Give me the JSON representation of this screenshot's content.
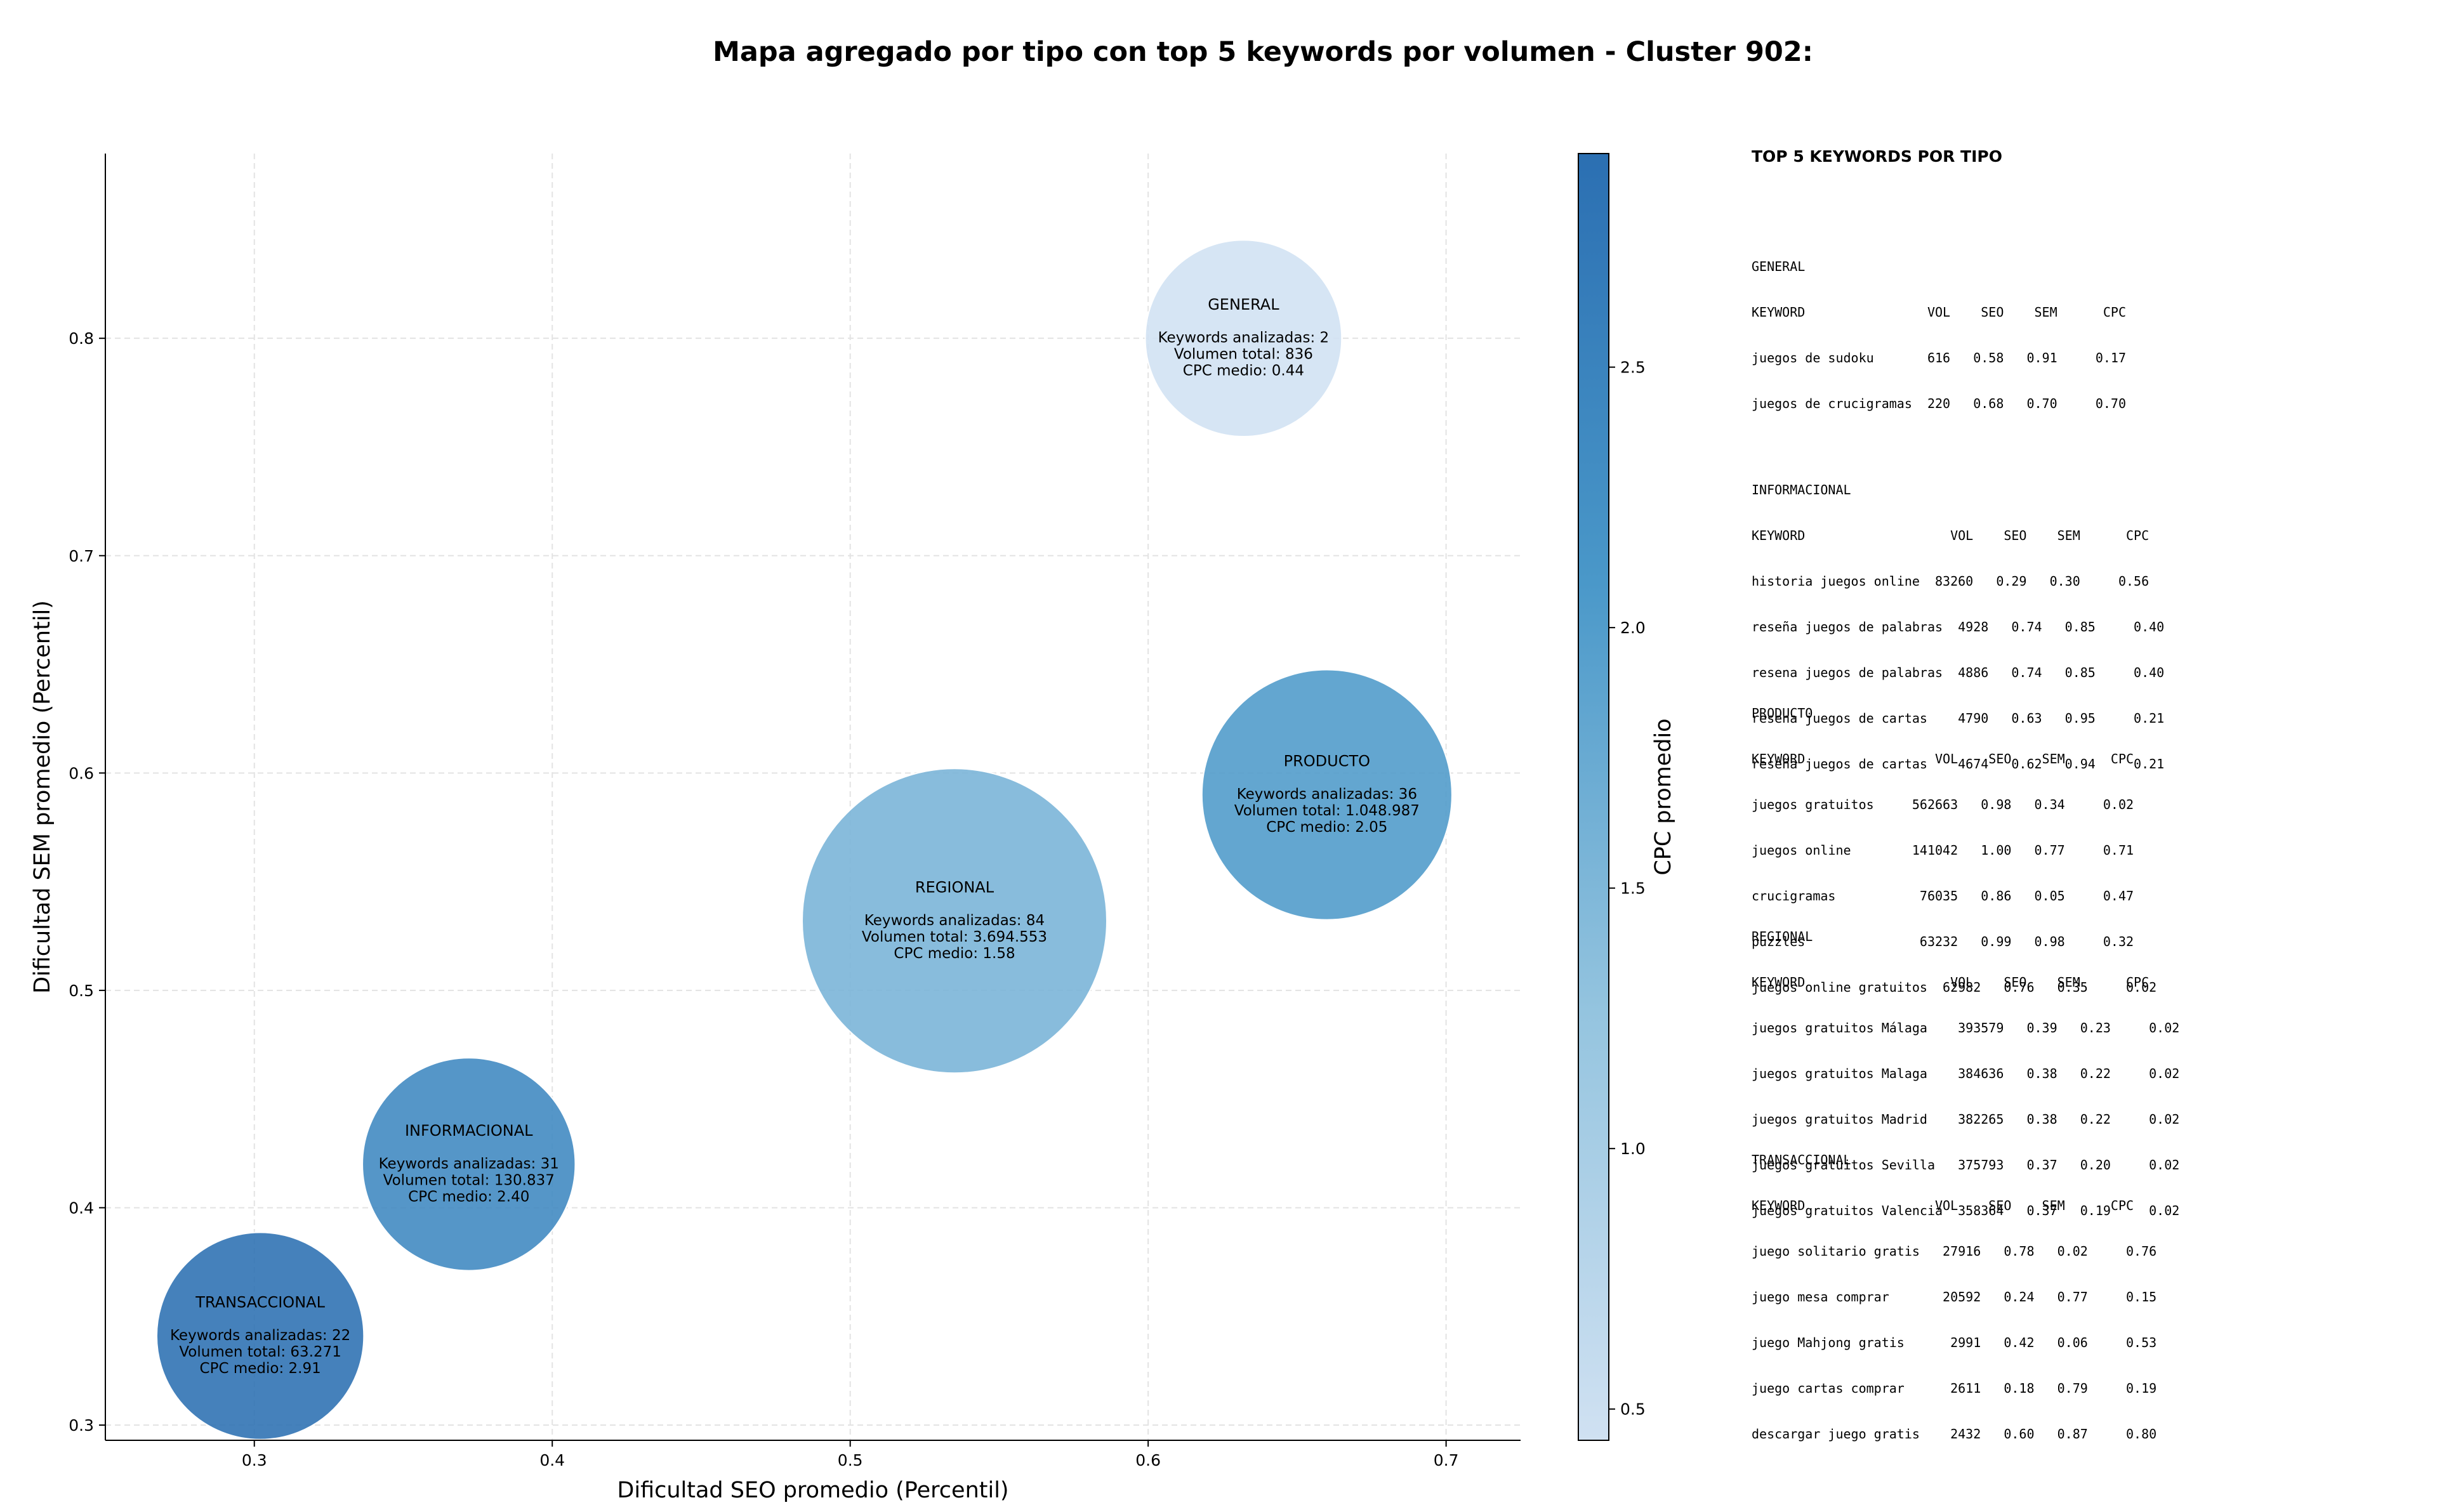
{
  "chart_data": {
    "type": "scatter",
    "title": "Mapa agregado por tipo con top 5 keywords por volumen - Cluster 902:",
    "xlabel": "Dificultad SEO promedio (Percentil)",
    "ylabel": "Dificultad SEM promedio (Percentil)",
    "xlim": [
      0.25,
      0.725
    ],
    "ylim": [
      0.293,
      0.885
    ],
    "xticks": [
      0.3,
      0.4,
      0.5,
      0.6,
      0.7
    ],
    "xtick_labels": [
      "0.3",
      "0.4",
      "0.5",
      "0.6",
      "0.7"
    ],
    "yticks": [
      0.3,
      0.4,
      0.5,
      0.6,
      0.7,
      0.8
    ],
    "ytick_labels": [
      "0.3",
      "0.4",
      "0.5",
      "0.6",
      "0.7",
      "0.8"
    ],
    "grid": true,
    "colorbar": {
      "label": "CPC promedio",
      "range": [
        0.44,
        2.91
      ],
      "ticks": [
        0.5,
        1.0,
        1.5,
        2.0,
        2.5
      ],
      "tick_labels": [
        "0.5",
        "1.0",
        "1.5",
        "2.0",
        "2.5"
      ],
      "colormap": [
        "#d0e1f2",
        "#94c4df",
        "#4a98c9",
        "#2b6fb2"
      ]
    },
    "points": [
      {
        "type": "GENERAL",
        "x": 0.632,
        "y": 0.8,
        "keywords": 2,
        "volume": 836,
        "cpc": 0.44,
        "label_lines": [
          "GENERAL",
          "",
          "Keywords analizadas: 2",
          "Volumen total: 836",
          "CPC medio: 0.44"
        ]
      },
      {
        "type": "PRODUCTO",
        "x": 0.66,
        "y": 0.59,
        "keywords": 36,
        "volume": 1048987,
        "cpc": 2.05,
        "label_lines": [
          "PRODUCTO",
          "",
          "Keywords analizadas: 36",
          "Volumen total: 1.048.987",
          "CPC medio: 2.05"
        ]
      },
      {
        "type": "REGIONAL",
        "x": 0.535,
        "y": 0.532,
        "keywords": 84,
        "volume": 3694553,
        "cpc": 1.58,
        "label_lines": [
          "REGIONAL",
          "",
          "Keywords analizadas: 84",
          "Volumen total: 3.694.553",
          "CPC medio: 1.58"
        ]
      },
      {
        "type": "INFORMACIONAL",
        "x": 0.372,
        "y": 0.42,
        "keywords": 31,
        "volume": 130837,
        "cpc": 2.4,
        "label_lines": [
          "INFORMACIONAL",
          "",
          "Keywords analizadas: 31",
          "Volumen total: 130.837",
          "CPC medio: 2.40"
        ]
      },
      {
        "type": "TRANSACCIONAL",
        "x": 0.302,
        "y": 0.341,
        "keywords": 22,
        "volume": 63271,
        "cpc": 2.91,
        "label_lines": [
          "TRANSACCIONAL",
          "",
          "Keywords analizadas: 22",
          "Volumen total: 63.271",
          "CPC medio: 2.91"
        ]
      }
    ]
  },
  "side_panel": {
    "title": "TOP 5 KEYWORDS POR TIPO",
    "sections": [
      {
        "lines": [
          "GENERAL",
          "KEYWORD                VOL    SEO    SEM      CPC",
          "juegos de sudoku       616   0.58   0.91     0.17",
          "juegos de crucigramas  220   0.68   0.70     0.70"
        ]
      },
      {
        "lines": [
          "INFORMACIONAL",
          "KEYWORD                   VOL    SEO    SEM      CPC",
          "historia juegos online  83260   0.29   0.30     0.56",
          "reseña juegos de palabras  4928   0.74   0.85     0.40",
          "resena juegos de palabras  4886   0.74   0.85     0.40",
          "resena juegos de cartas    4790   0.63   0.95     0.21",
          "reseña juegos de cartas    4674   0.62   0.94     0.21"
        ]
      },
      {
        "lines": [
          "PRODUCTO",
          "KEYWORD                 VOL    SEO    SEM      CPC",
          "juegos gratuitos     562663   0.98   0.34     0.02",
          "juegos online        141042   1.00   0.77     0.71",
          "crucigramas           76035   0.86   0.05     0.47",
          "puzzles               63232   0.99   0.98     0.32",
          "juegos online gratuitos  62982   0.76   0.35     0.02"
        ]
      },
      {
        "lines": [
          "REGIONAL",
          "KEYWORD                   VOL    SEO    SEM      CPC",
          "juegos gratuitos Málaga    393579   0.39   0.23     0.02",
          "juegos gratuitos Malaga    384636   0.38   0.22     0.02",
          "juegos gratuitos Madrid    382265   0.38   0.22     0.02",
          "juegos gratuitos Sevilla   375793   0.37   0.20     0.02",
          "juegos gratuitos Valencia  358364   0.37   0.19     0.02"
        ]
      },
      {
        "lines": [
          "TRANSACCIONAL",
          "KEYWORD                 VOL    SEO    SEM      CPC",
          "juego solitario gratis   27916   0.78   0.02     0.76",
          "juego mesa comprar       20592   0.24   0.77     0.15",
          "juego Mahjong gratis      2991   0.42   0.06     0.53",
          "juego cartas comprar      2611   0.18   0.79     0.19",
          "descargar juego gratis    2432   0.60   0.87     0.80"
        ]
      }
    ]
  }
}
